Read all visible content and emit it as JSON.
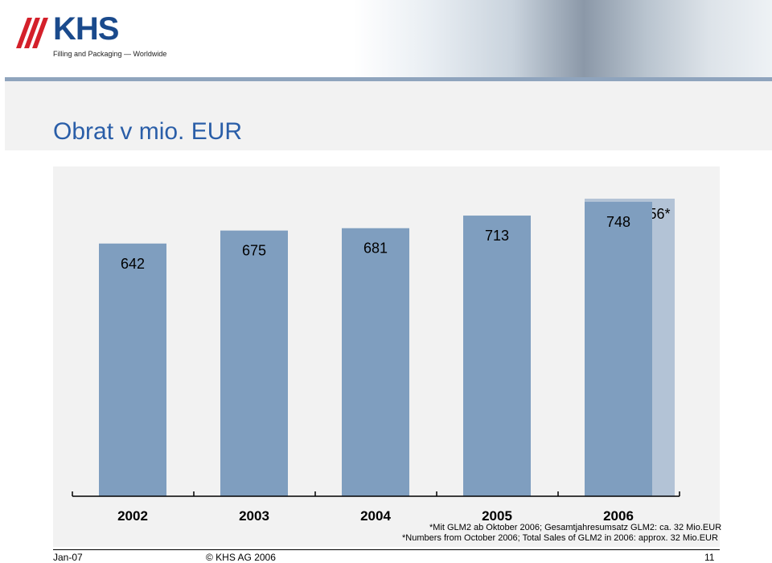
{
  "header": {
    "logo_text": "KHS",
    "logo_tagline": "Filling and Packaging — Worldwide"
  },
  "page_title": "Obrat v mio. EUR",
  "chart_data": {
    "type": "bar",
    "categories": [
      "2002",
      "2003",
      "2004",
      "2005",
      "2006"
    ],
    "values": [
      642,
      675,
      681,
      713,
      748
    ],
    "data_labels": [
      "642",
      "675",
      "681",
      "713",
      "748"
    ],
    "ghost_bar": {
      "category": "2006",
      "value": 756,
      "label": "756*"
    },
    "ylim": [
      0,
      756
    ],
    "title": "",
    "xlabel": "",
    "ylabel": "",
    "grid": false,
    "colors": {
      "bar": "#7f9ebf",
      "ghost_bar": "#b3c3d6",
      "background": "#f2f2f2"
    },
    "footnotes": [
      "*Mit GLM2 ab Oktober 2006; Gesamtjahresumsatz GLM2: ca. 32 Mio.EUR",
      "*Numbers from October 2006; Total Sales of GLM2 in 2006: approx. 32 Mio.EUR"
    ]
  },
  "footer": {
    "date": "Jan-07",
    "copyright": "© KHS AG 2006",
    "page_number": "11"
  }
}
